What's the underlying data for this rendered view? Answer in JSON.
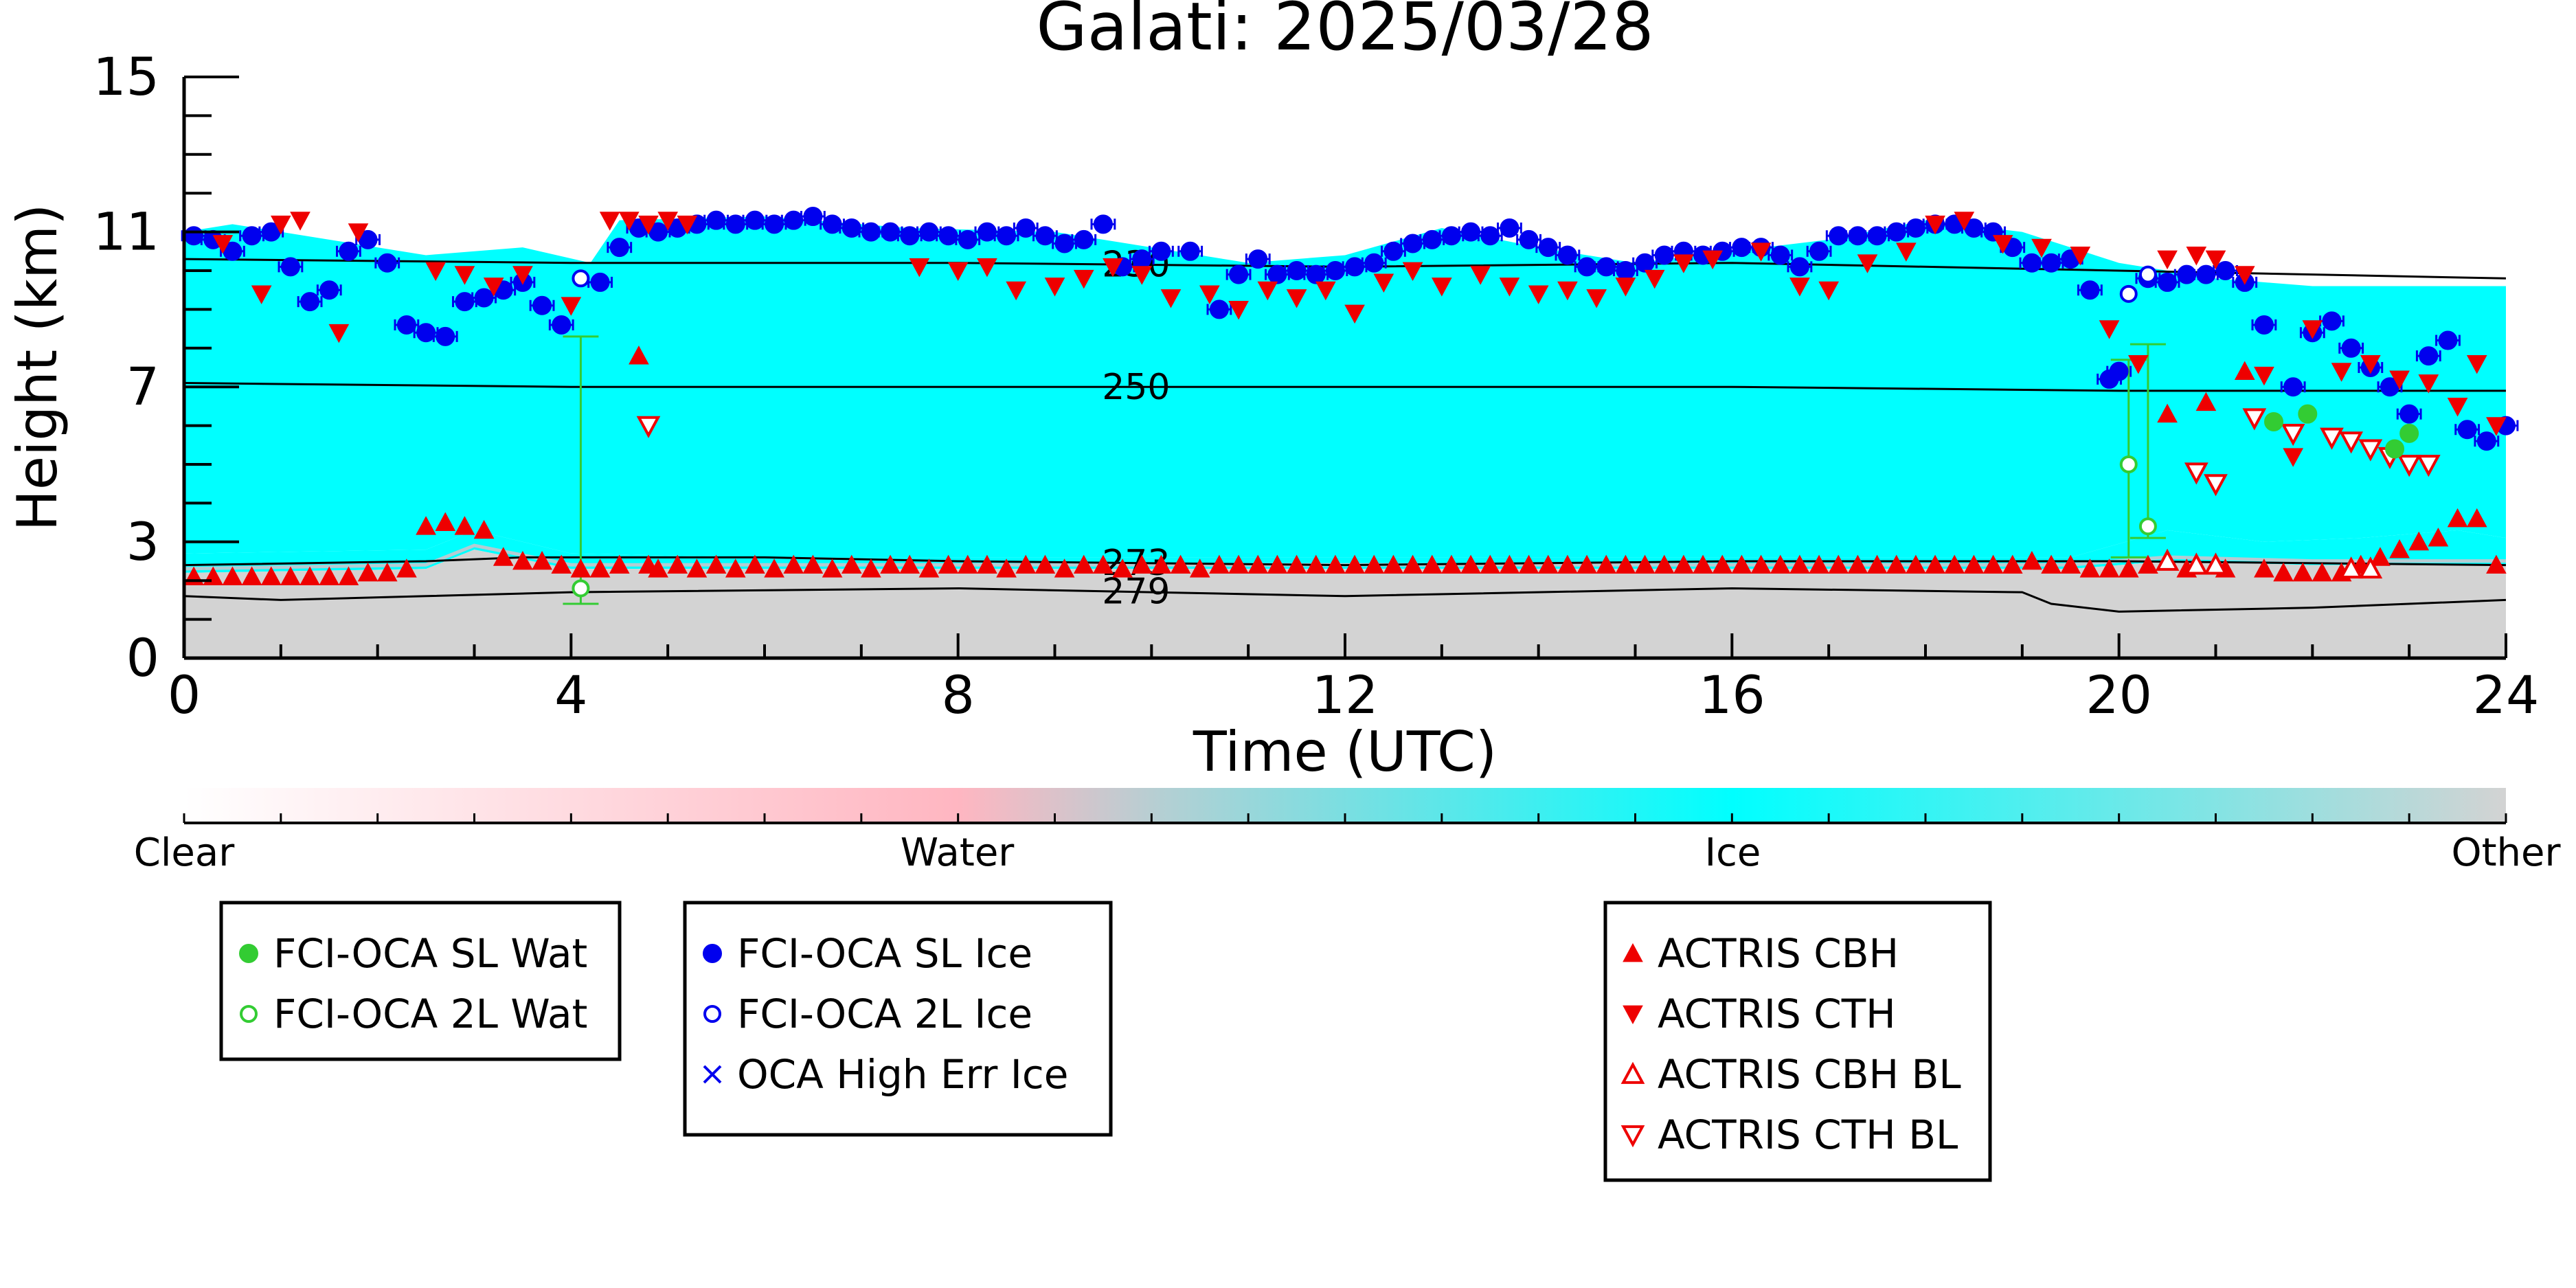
{
  "chart_data": {
    "type": "scatter",
    "title": "Galati: 2025/03/28",
    "xlabel": "Time (UTC)",
    "ylabel": "Height (km)",
    "xlim": [
      0,
      24
    ],
    "ylim": [
      0,
      15
    ],
    "xticks": [
      0,
      4,
      8,
      12,
      16,
      20,
      24
    ],
    "yticks": [
      0,
      3,
      7,
      11,
      15
    ],
    "background": {
      "description_classes": [
        "Clear",
        "Water",
        "Ice",
        "Other"
      ],
      "colors": {
        "Clear": "#ffffff",
        "Water": "#ffb6c1",
        "Ice": "#00ffff",
        "Other": "#d3d3d3"
      },
      "ice_layer_top": [
        [
          0,
          11.0
        ],
        [
          0.5,
          11.2
        ],
        [
          1.5,
          10.8
        ],
        [
          2.5,
          10.4
        ],
        [
          3.5,
          10.6
        ],
        [
          4.2,
          10.2
        ],
        [
          4.5,
          11.3
        ],
        [
          6,
          11.4
        ],
        [
          7.5,
          11.1
        ],
        [
          9,
          11.0
        ],
        [
          10,
          10.6
        ],
        [
          11,
          10.2
        ],
        [
          12,
          10.4
        ],
        [
          13,
          11.1
        ],
        [
          14,
          10.6
        ],
        [
          15,
          10.2
        ],
        [
          16,
          10.5
        ],
        [
          17,
          10.8
        ],
        [
          18,
          11.3
        ],
        [
          19,
          11.0
        ],
        [
          20,
          10.2
        ],
        [
          21,
          9.8
        ],
        [
          22,
          9.6
        ],
        [
          23,
          9.6
        ],
        [
          24,
          9.6
        ]
      ],
      "ice_layer_base": [
        [
          0,
          2.7
        ],
        [
          2.5,
          2.8
        ],
        [
          3.0,
          3.3
        ],
        [
          4.0,
          2.7
        ],
        [
          6,
          2.6
        ],
        [
          8,
          2.6
        ],
        [
          12,
          2.6
        ],
        [
          16,
          2.6
        ],
        [
          19.5,
          2.6
        ],
        [
          20.5,
          3.3
        ],
        [
          21.5,
          3.0
        ],
        [
          22.5,
          3.1
        ],
        [
          23.5,
          3.3
        ],
        [
          24,
          3.1
        ]
      ],
      "other_layer_top": [
        [
          0,
          2.2
        ],
        [
          2.5,
          2.3
        ],
        [
          3.0,
          2.8
        ],
        [
          4.0,
          2.3
        ],
        [
          8,
          2.3
        ],
        [
          12,
          2.3
        ],
        [
          16,
          2.3
        ],
        [
          19.5,
          2.3
        ],
        [
          20.5,
          2.5
        ],
        [
          22,
          2.4
        ],
        [
          24,
          2.4
        ]
      ]
    },
    "contours": [
      {
        "label": "230",
        "label_x": 9.4,
        "points": [
          [
            0,
            10.3
          ],
          [
            4,
            10.2
          ],
          [
            8,
            10.2
          ],
          [
            12,
            10.1
          ],
          [
            16,
            10.2
          ],
          [
            20,
            10.0
          ],
          [
            24,
            9.8
          ]
        ]
      },
      {
        "label": "250",
        "label_x": 9.4,
        "points": [
          [
            0,
            7.1
          ],
          [
            4,
            7.0
          ],
          [
            8,
            7.0
          ],
          [
            12,
            7.0
          ],
          [
            16,
            7.0
          ],
          [
            20,
            6.9
          ],
          [
            24,
            6.9
          ]
        ]
      },
      {
        "label": "273",
        "label_x": 9.4,
        "points": [
          [
            0,
            2.4
          ],
          [
            2.5,
            2.5
          ],
          [
            3.5,
            2.6
          ],
          [
            6,
            2.6
          ],
          [
            8,
            2.5
          ],
          [
            12,
            2.4
          ],
          [
            16,
            2.5
          ],
          [
            20,
            2.5
          ],
          [
            24,
            2.4
          ]
        ]
      },
      {
        "label": "279",
        "label_x": 9.4,
        "points": [
          [
            0,
            1.6
          ],
          [
            1,
            1.5
          ],
          [
            2.5,
            1.6
          ],
          [
            4,
            1.7
          ],
          [
            8,
            1.8
          ],
          [
            12,
            1.6
          ],
          [
            16,
            1.8
          ],
          [
            19,
            1.7
          ],
          [
            19.3,
            1.4
          ],
          [
            20,
            1.2
          ],
          [
            22,
            1.3
          ],
          [
            24,
            1.5
          ]
        ]
      }
    ],
    "series": [
      {
        "name": "FCI-OCA SL Wat",
        "marker": "circle-filled",
        "color": "#33cc33",
        "x": [
          21.6,
          21.95,
          22.85,
          23.0
        ],
        "y": [
          6.1,
          6.3,
          5.4,
          5.8
        ]
      },
      {
        "name": "FCI-OCA 2L Wat",
        "marker": "circle-open",
        "color": "#33cc33",
        "x": [
          4.1,
          20.1,
          20.3
        ],
        "y": [
          1.8,
          5.0,
          3.4
        ],
        "yerr_low": [
          1.4,
          2.6,
          3.1
        ],
        "yerr_high": [
          8.3,
          7.7,
          8.1
        ]
      },
      {
        "name": "FCI-OCA SL Ice",
        "marker": "circle-filled",
        "color": "#0000ee",
        "x": [
          0.1,
          0.3,
          0.5,
          0.7,
          0.9,
          1.1,
          1.3,
          1.5,
          1.7,
          1.9,
          2.1,
          2.3,
          2.5,
          2.7,
          2.9,
          3.1,
          3.3,
          3.5,
          3.7,
          3.9,
          4.3,
          4.5,
          4.7,
          4.9,
          5.1,
          5.3,
          5.5,
          5.7,
          5.9,
          6.1,
          6.3,
          6.5,
          6.7,
          6.9,
          7.1,
          7.3,
          7.5,
          7.7,
          7.9,
          8.1,
          8.3,
          8.5,
          8.7,
          8.9,
          9.1,
          9.3,
          9.5,
          9.7,
          9.9,
          10.1,
          10.4,
          10.7,
          10.9,
          11.1,
          11.3,
          11.5,
          11.7,
          11.9,
          12.1,
          12.3,
          12.5,
          12.7,
          12.9,
          13.1,
          13.3,
          13.5,
          13.7,
          13.9,
          14.1,
          14.3,
          14.5,
          14.7,
          14.9,
          15.1,
          15.3,
          15.5,
          15.7,
          15.9,
          16.1,
          16.3,
          16.5,
          16.7,
          16.9,
          17.1,
          17.3,
          17.5,
          17.7,
          17.9,
          18.1,
          18.3,
          18.5,
          18.7,
          18.9,
          19.1,
          19.3,
          19.5,
          19.7,
          19.9,
          20.0,
          20.3,
          20.5,
          20.7,
          20.9,
          21.1,
          21.3,
          21.5,
          21.8,
          22.0,
          22.2,
          22.4,
          22.6,
          22.8,
          23.0,
          23.2,
          23.4,
          23.6,
          23.8,
          24.0
        ],
        "y": [
          10.9,
          10.8,
          10.5,
          10.9,
          11.0,
          10.1,
          9.2,
          9.5,
          10.5,
          10.8,
          10.2,
          8.6,
          8.4,
          8.3,
          9.2,
          9.3,
          9.5,
          9.7,
          9.1,
          8.6,
          9.7,
          10.6,
          11.1,
          11.0,
          11.1,
          11.2,
          11.3,
          11.2,
          11.3,
          11.2,
          11.3,
          11.4,
          11.2,
          11.1,
          11.0,
          11.0,
          10.9,
          11.0,
          10.9,
          10.8,
          11.0,
          10.9,
          11.1,
          10.9,
          10.7,
          10.8,
          11.2,
          10.1,
          10.3,
          10.5,
          10.5,
          9.0,
          9.9,
          10.3,
          9.9,
          10.0,
          9.9,
          10.0,
          10.1,
          10.2,
          10.5,
          10.7,
          10.8,
          10.9,
          11.0,
          10.9,
          11.1,
          10.8,
          10.6,
          10.4,
          10.1,
          10.1,
          10.0,
          10.2,
          10.4,
          10.5,
          10.4,
          10.5,
          10.6,
          10.6,
          10.4,
          10.1,
          10.5,
          10.9,
          10.9,
          10.9,
          11.0,
          11.1,
          11.2,
          11.2,
          11.1,
          11.0,
          10.6,
          10.2,
          10.2,
          10.3,
          9.5,
          7.2,
          7.4,
          9.8,
          9.7,
          9.9,
          9.9,
          10.0,
          9.7,
          8.6,
          7.0,
          8.4,
          8.7,
          8.0,
          7.5,
          7.0,
          6.3,
          7.8,
          8.2,
          5.9,
          5.6,
          6.0
        ],
        "xerr": 0.12
      },
      {
        "name": "FCI-OCA 2L Ice",
        "marker": "circle-open",
        "color": "#0000ee",
        "x": [
          4.1,
          20.1,
          20.3
        ],
        "y": [
          9.8,
          9.4,
          9.9
        ]
      },
      {
        "name": "OCA High Err Ice",
        "marker": "x",
        "color": "#0000ee",
        "x": [],
        "y": []
      },
      {
        "name": "ACTRIS CBH",
        "marker": "triangle-up-filled",
        "color": "#ee0000",
        "x": [
          0.1,
          0.3,
          0.5,
          0.7,
          0.9,
          1.1,
          1.3,
          1.5,
          1.7,
          1.9,
          2.1,
          2.3,
          2.5,
          2.7,
          2.9,
          3.1,
          3.3,
          3.5,
          3.7,
          3.9,
          4.1,
          4.3,
          4.5,
          4.7,
          4.8,
          4.9,
          5.1,
          5.3,
          5.5,
          5.7,
          5.9,
          6.1,
          6.3,
          6.5,
          6.7,
          6.9,
          7.1,
          7.3,
          7.5,
          7.7,
          7.9,
          8.1,
          8.3,
          8.5,
          8.7,
          8.9,
          9.1,
          9.3,
          9.5,
          9.7,
          9.9,
          10.1,
          10.3,
          10.5,
          10.7,
          10.9,
          11.1,
          11.3,
          11.5,
          11.7,
          11.9,
          12.1,
          12.3,
          12.5,
          12.7,
          12.9,
          13.1,
          13.3,
          13.5,
          13.7,
          13.9,
          14.1,
          14.3,
          14.5,
          14.7,
          14.9,
          15.1,
          15.3,
          15.5,
          15.7,
          15.9,
          16.1,
          16.3,
          16.5,
          16.7,
          16.9,
          17.1,
          17.3,
          17.5,
          17.7,
          17.9,
          18.1,
          18.3,
          18.5,
          18.7,
          18.9,
          19.1,
          19.3,
          19.5,
          19.7,
          19.9,
          20.1,
          20.3,
          20.5,
          20.7,
          20.9,
          21.1,
          21.3,
          21.5,
          21.7,
          21.9,
          22.1,
          22.3,
          22.5,
          22.7,
          22.9,
          23.1,
          23.3,
          23.5,
          23.7,
          23.9
        ],
        "y": [
          2.1,
          2.1,
          2.1,
          2.1,
          2.1,
          2.1,
          2.1,
          2.1,
          2.1,
          2.2,
          2.2,
          2.3,
          3.4,
          3.5,
          3.4,
          3.3,
          2.6,
          2.5,
          2.5,
          2.4,
          2.3,
          2.3,
          2.4,
          7.8,
          2.4,
          2.3,
          2.4,
          2.3,
          2.4,
          2.3,
          2.4,
          2.3,
          2.4,
          2.4,
          2.3,
          2.4,
          2.3,
          2.4,
          2.4,
          2.3,
          2.4,
          2.4,
          2.4,
          2.3,
          2.4,
          2.4,
          2.3,
          2.4,
          2.4,
          2.3,
          2.4,
          2.4,
          2.4,
          2.3,
          2.4,
          2.4,
          2.4,
          2.4,
          2.4,
          2.4,
          2.4,
          2.4,
          2.4,
          2.4,
          2.4,
          2.4,
          2.4,
          2.4,
          2.4,
          2.4,
          2.4,
          2.4,
          2.4,
          2.4,
          2.4,
          2.4,
          2.4,
          2.4,
          2.4,
          2.4,
          2.4,
          2.4,
          2.4,
          2.4,
          2.4,
          2.4,
          2.4,
          2.4,
          2.4,
          2.4,
          2.4,
          2.4,
          2.4,
          2.4,
          2.4,
          2.4,
          2.5,
          2.4,
          2.4,
          2.3,
          2.3,
          2.3,
          2.4,
          6.3,
          2.3,
          6.6,
          2.3,
          7.4,
          2.3,
          2.2,
          2.2,
          2.2,
          2.2,
          2.4,
          2.6,
          2.8,
          3.0,
          3.1,
          3.6,
          3.6,
          2.4
        ],
        "label_none": ""
      },
      {
        "name": "ACTRIS CTH",
        "marker": "triangle-down-filled",
        "color": "#ee0000",
        "x": [
          0.4,
          0.8,
          1.0,
          1.2,
          1.6,
          1.8,
          2.6,
          2.9,
          3.2,
          3.5,
          4.0,
          4.4,
          4.6,
          4.8,
          5.0,
          5.2,
          7.6,
          8.0,
          8.3,
          8.6,
          9.0,
          9.3,
          9.6,
          9.9,
          10.2,
          10.6,
          10.9,
          11.2,
          11.5,
          11.8,
          12.1,
          12.4,
          12.7,
          13.0,
          13.4,
          13.7,
          14.0,
          14.3,
          14.6,
          14.9,
          15.2,
          15.5,
          15.8,
          16.3,
          16.7,
          17.0,
          17.4,
          17.8,
          18.1,
          18.4,
          18.8,
          19.2,
          19.6,
          19.9,
          20.2,
          20.5,
          20.8,
          21.0,
          21.3,
          21.5,
          21.8,
          22.0,
          22.3,
          22.6,
          22.9,
          23.2,
          23.5,
          23.7,
          23.9
        ],
        "y": [
          10.7,
          9.4,
          11.2,
          11.3,
          8.4,
          11.0,
          10.0,
          9.9,
          9.6,
          9.9,
          9.1,
          11.3,
          11.3,
          11.2,
          11.3,
          11.2,
          10.1,
          10.0,
          10.1,
          9.5,
          9.6,
          9.8,
          10.1,
          9.9,
          9.3,
          9.4,
          9.0,
          9.5,
          9.3,
          9.5,
          8.9,
          9.7,
          10.0,
          9.6,
          9.9,
          9.6,
          9.4,
          9.5,
          9.3,
          9.6,
          9.8,
          10.2,
          10.3,
          10.5,
          9.6,
          9.5,
          10.2,
          10.5,
          11.2,
          11.3,
          10.7,
          10.6,
          10.4,
          8.5,
          7.6,
          10.3,
          10.4,
          10.3,
          9.9,
          7.3,
          5.2,
          8.5,
          7.4,
          7.6,
          7.2,
          7.1,
          6.5,
          7.6,
          6.0
        ],
        "label_none": ""
      },
      {
        "name": "ACTRIS CBH BL",
        "marker": "triangle-up-open",
        "color": "#ee0000",
        "x": [
          20.5,
          20.8,
          21.0,
          22.4,
          22.6
        ],
        "y": [
          2.5,
          2.4,
          2.4,
          2.3,
          2.3
        ]
      },
      {
        "name": "ACTRIS CTH BL",
        "marker": "triangle-down-open",
        "color": "#ee0000",
        "x": [
          4.8,
          20.8,
          21.0,
          21.4,
          21.8,
          22.2,
          22.4,
          22.6,
          22.8,
          23.0,
          23.2
        ],
        "y": [
          6.0,
          4.8,
          4.5,
          6.2,
          5.8,
          5.7,
          5.6,
          5.4,
          5.2,
          5.0,
          5.0
        ]
      }
    ],
    "colorbar": {
      "labels": [
        "Clear",
        "Water",
        "Ice",
        "Other"
      ],
      "label_positions": [
        0,
        0.333,
        0.667,
        1.0
      ],
      "stops": [
        {
          "pos": 0.0,
          "color": "#ffffff"
        },
        {
          "pos": 0.333,
          "color": "#ffb6c1"
        },
        {
          "pos": 0.42,
          "color": "#b5cfd3"
        },
        {
          "pos": 0.667,
          "color": "#00ffff"
        },
        {
          "pos": 1.0,
          "color": "#d3d3d3"
        }
      ],
      "minor_ticks": 24
    },
    "legends": [
      {
        "entries": [
          "FCI-OCA SL Wat",
          "FCI-OCA 2L Wat"
        ]
      },
      {
        "entries": [
          "FCI-OCA SL Ice",
          "FCI-OCA 2L Ice",
          "OCA High Err Ice"
        ]
      },
      {
        "entries": [
          "ACTRIS CBH",
          "ACTRIS CTH",
          "ACTRIS CBH BL",
          "ACTRIS CTH BL"
        ]
      }
    ]
  }
}
